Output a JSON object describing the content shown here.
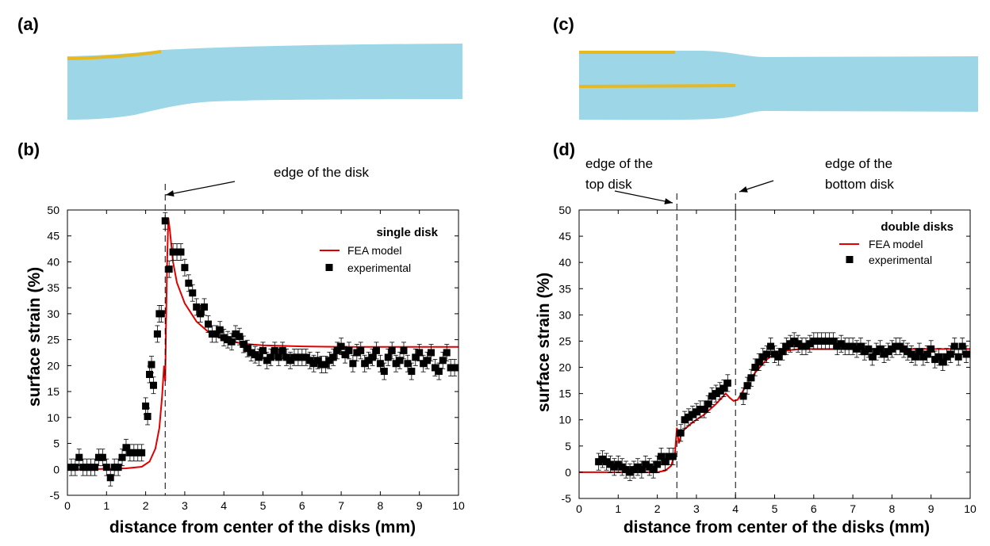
{
  "panels": {
    "a": "(a)",
    "b": "(b)",
    "c": "(c)",
    "d": "(d)"
  },
  "colors": {
    "tissue": "#9dd7e7",
    "disk": "#e8b820",
    "model": "#e00000",
    "marker": "#000000"
  },
  "chart_data": [
    {
      "type": "scatter",
      "panel": "b",
      "xlabel": "distance from center of the disks (mm)",
      "ylabel": "surface strain (%)",
      "xlim": [
        0,
        10
      ],
      "ylim": [
        -5,
        50
      ],
      "xticks": [
        "0",
        "1",
        "2",
        "3",
        "4",
        "5",
        "6",
        "7",
        "8",
        "9",
        "10"
      ],
      "yticks": [
        "-5",
        "0",
        "5",
        "10",
        "15",
        "20",
        "25",
        "30",
        "35",
        "40",
        "45",
        "50"
      ],
      "legend": {
        "title": "single disk",
        "placement": "top-right",
        "entries": [
          "FEA model",
          "experimental"
        ]
      },
      "annotations": [
        {
          "x": 2.5,
          "lines": [
            "edge of the disk"
          ]
        }
      ],
      "series": [
        {
          "name": "FEA model",
          "kind": "line",
          "x": [
            0,
            0.5,
            1,
            1.5,
            1.9,
            2.1,
            2.25,
            2.35,
            2.42,
            2.47,
            2.5,
            2.52,
            2.55,
            2.58,
            2.62,
            2.7,
            2.8,
            3.0,
            3.3,
            3.6,
            4.0,
            4.5,
            5.0,
            6.0,
            7.0,
            8.0,
            9.0,
            10.0
          ],
          "y": [
            0,
            0,
            0.1,
            0.2,
            0.5,
            1.5,
            4,
            8,
            14,
            20,
            17,
            27,
            40,
            48.5,
            46,
            40,
            36,
            32,
            28.5,
            26.5,
            25,
            24.2,
            23.9,
            23.7,
            23.6,
            23.6,
            23.6,
            23.6
          ]
        },
        {
          "name": "experimental",
          "kind": "scatter",
          "x": [
            0.1,
            0.2,
            0.3,
            0.4,
            0.5,
            0.6,
            0.7,
            0.8,
            0.9,
            1.0,
            1.1,
            1.2,
            1.3,
            1.4,
            1.5,
            1.6,
            1.7,
            1.8,
            1.9,
            2.0,
            2.05,
            2.1,
            2.15,
            2.2,
            2.3,
            2.35,
            2.4,
            2.5,
            2.6,
            2.7,
            2.8,
            2.9,
            3.0,
            3.1,
            3.2,
            3.3,
            3.4,
            3.5,
            3.6,
            3.7,
            3.8,
            3.9,
            4.0,
            4.1,
            4.2,
            4.3,
            4.4,
            4.5,
            4.6,
            4.7,
            4.8,
            4.9,
            5.0,
            5.1,
            5.2,
            5.3,
            5.4,
            5.5,
            5.6,
            5.7,
            5.8,
            5.9,
            6.0,
            6.1,
            6.2,
            6.3,
            6.4,
            6.5,
            6.6,
            6.7,
            6.8,
            6.9,
            7.0,
            7.1,
            7.2,
            7.3,
            7.4,
            7.5,
            7.6,
            7.7,
            7.8,
            7.9,
            8.0,
            8.1,
            8.2,
            8.3,
            8.4,
            8.5,
            8.6,
            8.7,
            8.8,
            8.9,
            9.0,
            9.1,
            9.2,
            9.3,
            9.4,
            9.5,
            9.6,
            9.7,
            9.8,
            9.9
          ],
          "y": [
            0.4,
            0.4,
            2.3,
            0.4,
            0.4,
            0.4,
            0.4,
            2.3,
            2.3,
            0.4,
            -1.6,
            0.4,
            0.4,
            2.3,
            4.2,
            3.2,
            3.2,
            3.2,
            3.2,
            12.2,
            10.2,
            18.3,
            20.2,
            16.2,
            26.1,
            30.0,
            30.0,
            47.9,
            38.6,
            41.9,
            41.9,
            41.9,
            38.9,
            35.9,
            34.0,
            31.3,
            30.0,
            31.3,
            28.0,
            26.1,
            26.1,
            26.9,
            25.4,
            25.0,
            24.6,
            26.1,
            25.6,
            24.1,
            23.3,
            22.5,
            22.1,
            21.6,
            22.9,
            21.0,
            21.6,
            22.9,
            21.6,
            22.9,
            21.6,
            21.0,
            21.6,
            21.6,
            21.6,
            21.6,
            21.0,
            20.4,
            21.0,
            20.2,
            20.2,
            21.0,
            21.6,
            22.9,
            23.7,
            22.1,
            22.9,
            20.4,
            22.5,
            22.9,
            20.4,
            21.0,
            21.6,
            22.9,
            20.4,
            18.9,
            21.6,
            22.9,
            20.4,
            21.0,
            22.9,
            20.4,
            18.9,
            21.6,
            22.5,
            20.4,
            21.0,
            22.5,
            19.6,
            18.9,
            21.0,
            22.5,
            19.6,
            19.6
          ],
          "err": 1.6
        }
      ]
    },
    {
      "type": "scatter",
      "panel": "d",
      "xlabel": "distance from center of the disks (mm)",
      "ylabel": "surface strain (%)",
      "xlim": [
        0,
        10
      ],
      "ylim": [
        -5,
        50
      ],
      "xticks": [
        "0",
        "1",
        "2",
        "3",
        "4",
        "5",
        "6",
        "7",
        "8",
        "9",
        "10"
      ],
      "yticks": [
        "-5",
        "0",
        "5",
        "10",
        "15",
        "20",
        "25",
        "30",
        "35",
        "40",
        "45",
        "50"
      ],
      "legend": {
        "title": "double disks",
        "placement": "top-right",
        "entries": [
          "FEA model",
          "experimental"
        ]
      },
      "annotations": [
        {
          "x": 2.5,
          "lines": [
            "edge of the",
            "top disk"
          ]
        },
        {
          "x": 4.0,
          "lines": [
            "edge of the",
            "bottom disk"
          ]
        }
      ],
      "series": [
        {
          "name": "FEA model",
          "kind": "line",
          "x": [
            0,
            0.5,
            1.0,
            1.5,
            2.0,
            2.2,
            2.35,
            2.45,
            2.5,
            2.55,
            2.62,
            2.7,
            2.9,
            3.2,
            3.5,
            3.75,
            3.85,
            3.95,
            4.05,
            4.15,
            4.3,
            4.5,
            4.8,
            5.1,
            5.4,
            5.7,
            6.0,
            7.0,
            8.0,
            9.0,
            10.0
          ],
          "y": [
            0,
            0,
            0,
            0,
            0,
            0.3,
            1.2,
            3.5,
            8.5,
            5.5,
            7.5,
            8.2,
            9.5,
            11.0,
            13.0,
            15.0,
            14.2,
            13.6,
            13.8,
            15.0,
            16.8,
            19.0,
            21.5,
            23.0,
            23.3,
            23.5,
            23.5,
            23.5,
            23.5,
            23.5,
            23.5
          ]
        },
        {
          "name": "experimental",
          "kind": "scatter",
          "x": [
            0.5,
            0.6,
            0.7,
            0.8,
            0.9,
            1.0,
            1.1,
            1.2,
            1.3,
            1.4,
            1.5,
            1.6,
            1.7,
            1.8,
            1.9,
            2.0,
            2.1,
            2.2,
            2.3,
            2.4,
            2.6,
            2.7,
            2.8,
            2.9,
            3.0,
            3.1,
            3.2,
            3.3,
            3.4,
            3.5,
            3.6,
            3.7,
            3.8,
            4.2,
            4.3,
            4.4,
            4.5,
            4.6,
            4.7,
            4.8,
            4.9,
            5.0,
            5.1,
            5.2,
            5.3,
            5.4,
            5.5,
            5.6,
            5.7,
            5.8,
            5.9,
            6.0,
            6.1,
            6.2,
            6.3,
            6.4,
            6.5,
            6.6,
            6.7,
            6.8,
            6.9,
            7.0,
            7.1,
            7.2,
            7.3,
            7.4,
            7.5,
            7.6,
            7.7,
            7.8,
            7.9,
            8.0,
            8.1,
            8.2,
            8.3,
            8.4,
            8.5,
            8.6,
            8.7,
            8.8,
            8.9,
            9.0,
            9.1,
            9.2,
            9.3,
            9.4,
            9.5,
            9.6,
            9.7,
            9.8,
            9.9
          ],
          "y": [
            2.0,
            2.5,
            2.0,
            1.5,
            1.0,
            1.5,
            1.0,
            0.5,
            0,
            0.5,
            1.0,
            0.5,
            1.5,
            1.0,
            0.5,
            1.5,
            3.0,
            2.0,
            3.0,
            3.0,
            7.5,
            10.0,
            10.5,
            11.0,
            11.5,
            12.0,
            12.0,
            13.0,
            14.5,
            15.0,
            15.5,
            16.0,
            17.0,
            14.5,
            16.5,
            18.0,
            20.0,
            21.0,
            22.0,
            22.5,
            24.0,
            22.5,
            22.0,
            23.0,
            24.0,
            24.5,
            25.0,
            24.5,
            24.0,
            24.0,
            24.5,
            25.0,
            25.0,
            25.0,
            25.0,
            25.0,
            25.0,
            24.0,
            24.5,
            24.0,
            24.0,
            24.0,
            23.5,
            24.0,
            23.0,
            23.5,
            22.0,
            23.0,
            23.5,
            22.5,
            23.0,
            23.5,
            24.0,
            24.0,
            23.5,
            23.0,
            22.5,
            22.0,
            23.0,
            22.0,
            22.5,
            23.5,
            21.5,
            22.0,
            21.0,
            22.0,
            22.5,
            24.0,
            22.0,
            24.0,
            22.5
          ],
          "err": 1.6
        }
      ]
    }
  ]
}
